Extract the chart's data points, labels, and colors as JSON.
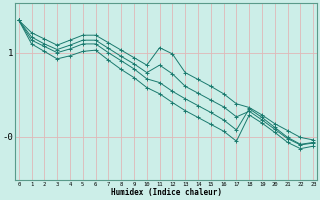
{
  "xlabel": "Humidex (Indice chaleur)",
  "bg_color": "#cceee8",
  "grid_color": "#e0b8b8",
  "line_color": "#1a7a6e",
  "x_ticks": [
    0,
    1,
    2,
    3,
    4,
    5,
    6,
    7,
    8,
    9,
    10,
    11,
    12,
    13,
    14,
    15,
    16,
    17,
    18,
    19,
    20,
    21,
    22,
    23
  ],
  "ytick_labels": [
    "1",
    "-0"
  ],
  "ytick_positions": [
    1.3,
    -0.05
  ],
  "ylim": [
    -0.75,
    2.1
  ],
  "xlim": [
    -0.3,
    23.3
  ],
  "lines": [
    [
      1.82,
      1.62,
      1.52,
      1.42,
      1.5,
      1.58,
      1.58,
      1.46,
      1.34,
      1.22,
      1.1,
      1.38,
      1.28,
      0.98,
      0.87,
      0.76,
      0.64,
      0.48,
      0.42,
      0.3,
      0.16,
      0.05,
      -0.06,
      -0.1
    ],
    [
      1.82,
      1.55,
      1.44,
      1.35,
      1.42,
      1.5,
      1.5,
      1.37,
      1.24,
      1.12,
      0.98,
      1.1,
      0.96,
      0.76,
      0.65,
      0.54,
      0.43,
      0.27,
      0.36,
      0.22,
      0.07,
      -0.08,
      -0.18,
      -0.15
    ],
    [
      1.82,
      1.5,
      1.4,
      1.3,
      1.36,
      1.44,
      1.44,
      1.3,
      1.17,
      1.04,
      0.88,
      0.82,
      0.68,
      0.56,
      0.45,
      0.34,
      0.22,
      0.06,
      0.4,
      0.26,
      0.1,
      -0.06,
      -0.17,
      -0.14
    ],
    [
      1.82,
      1.44,
      1.32,
      1.2,
      1.25,
      1.32,
      1.34,
      1.18,
      1.03,
      0.9,
      0.74,
      0.64,
      0.5,
      0.37,
      0.26,
      0.15,
      0.04,
      -0.12,
      0.3,
      0.17,
      0.02,
      -0.14,
      -0.24,
      -0.2
    ]
  ]
}
